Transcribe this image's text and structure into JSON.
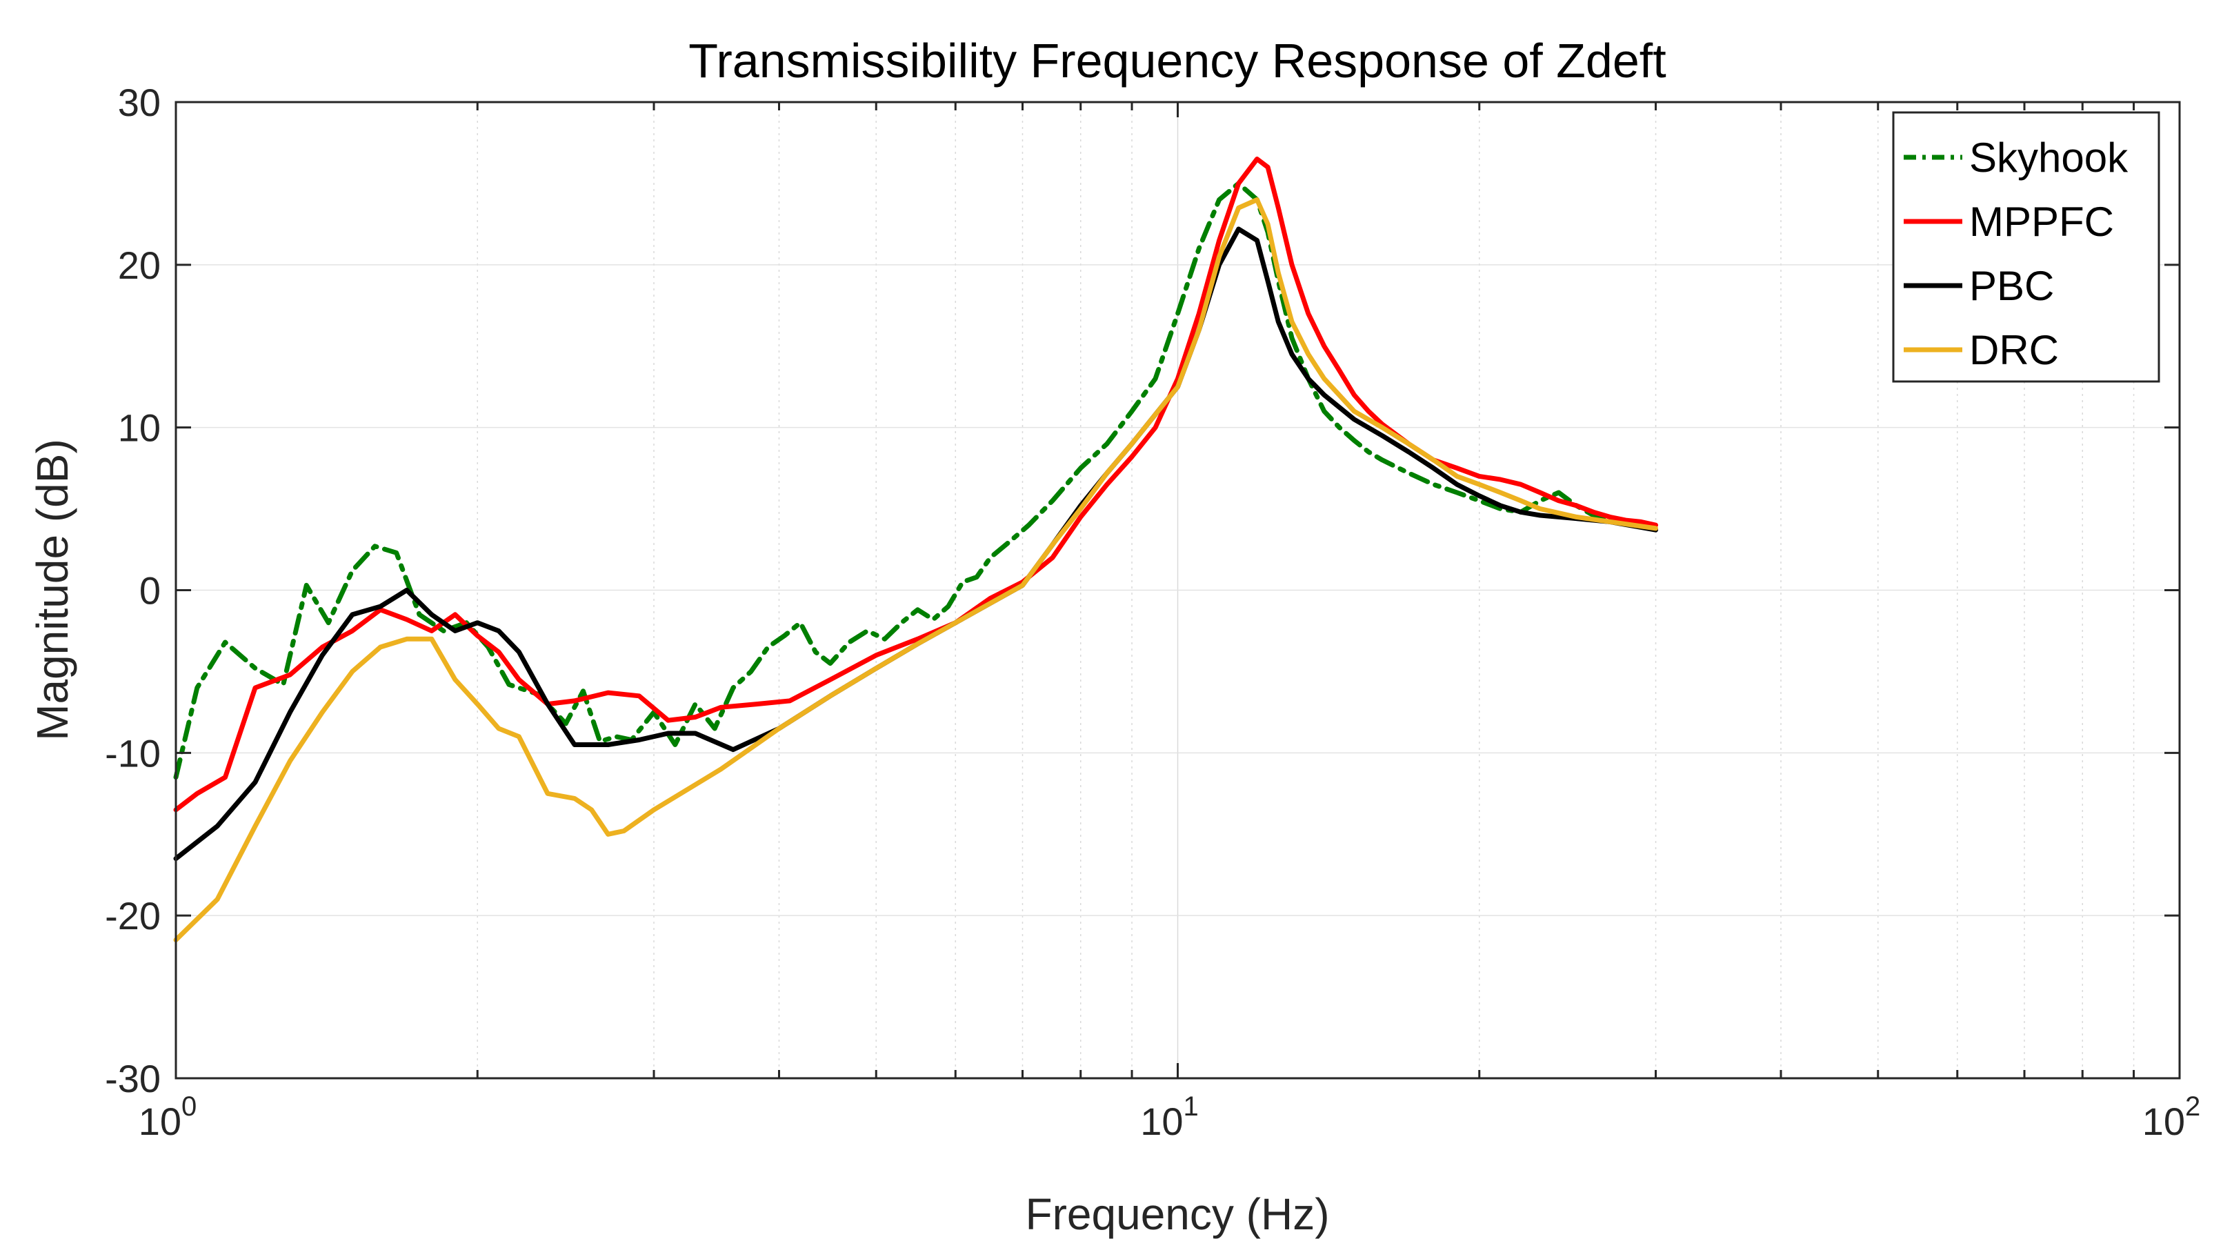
{
  "chart_data": {
    "type": "line",
    "title": "Transmissibility Frequency Response of Zdeft",
    "xlabel": "Frequency (Hz)",
    "ylabel": "Magnitude (dB)",
    "xscale": "log",
    "xlim": [
      1,
      100
    ],
    "ylim": [
      -30,
      30
    ],
    "grid": true,
    "legend_position": "top-right",
    "x_ticks": [
      {
        "value": 1,
        "base": "10",
        "exp": "0"
      },
      {
        "value": 10,
        "base": "10",
        "exp": "1"
      },
      {
        "value": 100,
        "base": "10",
        "exp": "2"
      }
    ],
    "y_ticks": [
      -30,
      -20,
      -10,
      0,
      10,
      20,
      30
    ],
    "series": [
      {
        "name": "Skyhook",
        "color": "#007f00",
        "dash": "dashdot",
        "x": [
          1.0,
          1.05,
          1.12,
          1.2,
          1.28,
          1.35,
          1.42,
          1.5,
          1.58,
          1.66,
          1.75,
          1.85,
          1.95,
          2.05,
          2.15,
          2.3,
          2.45,
          2.55,
          2.65,
          2.75,
          2.85,
          3.0,
          3.15,
          3.3,
          3.45,
          3.6,
          3.75,
          3.9,
          4.05,
          4.2,
          4.35,
          4.5,
          4.7,
          4.9,
          5.1,
          5.3,
          5.5,
          5.7,
          5.9,
          6.1,
          6.3,
          6.5,
          6.8,
          7.1,
          7.5,
          8.0,
          8.5,
          9.0,
          9.5,
          10.0,
          10.5,
          11.0,
          11.5,
          12.0,
          12.3,
          12.6,
          13.0,
          13.5,
          14.0,
          14.5,
          15.0,
          15.5,
          16.0,
          17.0,
          18.0,
          19.0,
          20.0,
          21.0,
          22.0,
          23.0,
          24.0,
          25.0,
          26.0,
          27.0,
          28.0,
          29.0,
          30.0
        ],
        "y": [
          -11.5,
          -6.0,
          -3.2,
          -4.8,
          -5.8,
          0.3,
          -2.0,
          1.2,
          2.7,
          2.3,
          -1.5,
          -2.5,
          -2.0,
          -3.5,
          -5.8,
          -6.4,
          -8.2,
          -6.2,
          -9.3,
          -9.0,
          -9.2,
          -7.5,
          -9.5,
          -7.0,
          -8.5,
          -6.0,
          -5.0,
          -3.5,
          -2.8,
          -2.0,
          -3.8,
          -4.5,
          -3.2,
          -2.5,
          -3.0,
          -2.0,
          -1.2,
          -1.8,
          -1.0,
          0.5,
          0.8,
          2.0,
          3.0,
          4.0,
          5.5,
          7.5,
          9.0,
          11.0,
          13.0,
          17.0,
          21.0,
          24.0,
          25.0,
          24.0,
          22.0,
          19.0,
          15.5,
          13.0,
          11.0,
          10.0,
          9.2,
          8.5,
          8.0,
          7.2,
          6.5,
          6.0,
          5.5,
          5.0,
          4.8,
          5.5,
          6.0,
          5.2,
          4.6,
          4.4,
          4.2,
          4.0,
          3.8
        ]
      },
      {
        "name": "MPPFC",
        "color": "#ff0000",
        "dash": "solid",
        "x": [
          1.0,
          1.05,
          1.12,
          1.2,
          1.3,
          1.4,
          1.5,
          1.6,
          1.7,
          1.8,
          1.9,
          2.0,
          2.1,
          2.2,
          2.35,
          2.5,
          2.7,
          2.9,
          3.1,
          3.3,
          3.5,
          3.8,
          4.1,
          4.5,
          5.0,
          5.5,
          6.0,
          6.5,
          7.0,
          7.5,
          8.0,
          8.5,
          9.0,
          9.5,
          10.0,
          10.5,
          11.0,
          11.5,
          12.0,
          12.3,
          12.6,
          13.0,
          13.5,
          14.0,
          14.5,
          15.0,
          15.5,
          16.0,
          17.0,
          18.0,
          19.0,
          20.0,
          21.0,
          22.0,
          23.0,
          24.0,
          25.0,
          26.0,
          27.0,
          28.0,
          29.0,
          30.0
        ],
        "y": [
          -13.5,
          -12.5,
          -11.5,
          -6.0,
          -5.2,
          -3.5,
          -2.5,
          -1.2,
          -1.8,
          -2.5,
          -1.5,
          -2.8,
          -3.8,
          -5.5,
          -7.0,
          -6.8,
          -6.3,
          -6.5,
          -8.0,
          -7.8,
          -7.2,
          -7.0,
          -6.8,
          -5.5,
          -4.0,
          -3.0,
          -2.0,
          -0.5,
          0.5,
          2.0,
          4.5,
          6.5,
          8.2,
          10.0,
          13.0,
          17.0,
          21.5,
          25.0,
          26.5,
          26.0,
          23.5,
          20.0,
          17.0,
          15.0,
          13.5,
          12.0,
          11.0,
          10.2,
          9.0,
          8.0,
          7.5,
          7.0,
          6.8,
          6.5,
          6.0,
          5.5,
          5.2,
          4.8,
          4.5,
          4.3,
          4.2,
          4.0
        ]
      },
      {
        "name": "PBC",
        "color": "#000000",
        "dash": "solid",
        "x": [
          1.0,
          1.1,
          1.2,
          1.3,
          1.4,
          1.5,
          1.6,
          1.7,
          1.8,
          1.9,
          2.0,
          2.1,
          2.2,
          2.35,
          2.5,
          2.7,
          2.9,
          3.1,
          3.3,
          3.6,
          4.0,
          4.5,
          5.0,
          5.5,
          6.0,
          6.5,
          7.0,
          7.5,
          8.0,
          8.5,
          9.0,
          9.5,
          10.0,
          10.5,
          11.0,
          11.5,
          12.0,
          12.3,
          12.6,
          13.0,
          13.5,
          14.0,
          15.0,
          16.0,
          17.0,
          18.0,
          19.0,
          20.0,
          21.0,
          22.0,
          23.0,
          25.0,
          27.0,
          30.0
        ],
        "y": [
          -16.5,
          -14.5,
          -11.8,
          -7.5,
          -4.0,
          -1.5,
          -1.0,
          0.0,
          -1.5,
          -2.5,
          -2.0,
          -2.5,
          -3.8,
          -7.0,
          -9.5,
          -9.5,
          -9.2,
          -8.8,
          -8.8,
          -9.8,
          -8.5,
          -6.5,
          -4.8,
          -3.3,
          -2.0,
          -0.8,
          0.3,
          2.8,
          5.2,
          7.2,
          9.0,
          10.8,
          12.5,
          16.0,
          20.0,
          22.2,
          21.5,
          19.0,
          16.5,
          14.5,
          13.0,
          12.0,
          10.5,
          9.5,
          8.5,
          7.5,
          6.5,
          5.8,
          5.2,
          4.8,
          4.6,
          4.4,
          4.2,
          3.7
        ]
      },
      {
        "name": "DRC",
        "color": "#edb120",
        "dash": "solid",
        "x": [
          1.0,
          1.1,
          1.2,
          1.3,
          1.4,
          1.5,
          1.6,
          1.7,
          1.8,
          1.9,
          2.0,
          2.1,
          2.2,
          2.35,
          2.5,
          2.6,
          2.7,
          2.8,
          3.0,
          3.5,
          4.0,
          4.5,
          5.0,
          5.5,
          6.0,
          6.5,
          7.0,
          7.5,
          8.0,
          8.5,
          9.0,
          9.5,
          10.0,
          10.5,
          11.0,
          11.5,
          12.0,
          12.3,
          12.6,
          13.0,
          13.5,
          14.0,
          15.0,
          16.0,
          17.0,
          18.0,
          19.0,
          20.0,
          21.0,
          22.0,
          23.0,
          25.0,
          27.0,
          30.0
        ],
        "y": [
          -21.5,
          -19.0,
          -14.5,
          -10.5,
          -7.5,
          -5.0,
          -3.5,
          -3.0,
          -3.0,
          -5.5,
          -7.0,
          -8.5,
          -9.0,
          -12.5,
          -12.8,
          -13.5,
          -15.0,
          -14.8,
          -13.5,
          -11.0,
          -8.5,
          -6.5,
          -4.8,
          -3.3,
          -2.0,
          -0.8,
          0.3,
          2.8,
          5.0,
          7.2,
          9.0,
          10.8,
          12.5,
          16.0,
          20.5,
          23.5,
          24.0,
          22.5,
          19.5,
          16.5,
          14.5,
          13.0,
          11.0,
          10.0,
          9.0,
          8.0,
          7.0,
          6.5,
          6.0,
          5.5,
          5.0,
          4.5,
          4.2,
          3.8
        ]
      }
    ]
  }
}
